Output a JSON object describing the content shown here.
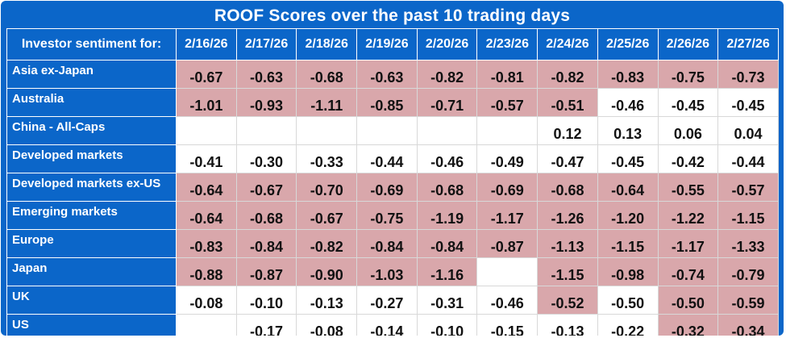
{
  "chart_data": {
    "type": "table",
    "title": "ROOF Scores over the past 10 trading days",
    "corner_label": "Investor sentiment for:",
    "columns": [
      "2/16/26",
      "2/17/26",
      "2/18/26",
      "2/19/26",
      "2/20/26",
      "2/23/26",
      "2/24/26",
      "2/25/26",
      "2/26/26",
      "2/27/26"
    ],
    "rows": [
      {
        "label": "Asia ex-Japan",
        "values": [
          -0.67,
          -0.63,
          -0.68,
          -0.63,
          -0.82,
          -0.81,
          -0.82,
          -0.83,
          -0.75,
          -0.73
        ]
      },
      {
        "label": "Australia",
        "values": [
          -1.01,
          -0.93,
          -1.11,
          -0.85,
          -0.71,
          -0.57,
          -0.51,
          -0.46,
          -0.45,
          -0.45
        ]
      },
      {
        "label": "China - All-Caps",
        "values": [
          null,
          null,
          null,
          null,
          null,
          null,
          0.12,
          0.13,
          0.06,
          0.04
        ]
      },
      {
        "label": "Developed markets",
        "values": [
          -0.41,
          -0.3,
          -0.33,
          -0.44,
          -0.46,
          -0.49,
          -0.47,
          -0.45,
          -0.42,
          -0.44
        ]
      },
      {
        "label": "Developed markets ex-US",
        "values": [
          -0.64,
          -0.67,
          -0.7,
          -0.69,
          -0.68,
          -0.69,
          -0.68,
          -0.64,
          -0.55,
          -0.57
        ]
      },
      {
        "label": "Emerging markets",
        "values": [
          -0.64,
          -0.68,
          -0.67,
          -0.75,
          -1.19,
          -1.17,
          -1.26,
          -1.2,
          -1.22,
          -1.15
        ]
      },
      {
        "label": "Europe",
        "values": [
          -0.83,
          -0.84,
          -0.82,
          -0.84,
          -0.84,
          -0.87,
          -1.13,
          -1.15,
          -1.17,
          -1.33
        ]
      },
      {
        "label": "Japan",
        "values": [
          -0.88,
          -0.87,
          -0.9,
          -1.03,
          -1.16,
          null,
          -1.15,
          -0.98,
          -0.74,
          -0.79
        ]
      },
      {
        "label": "UK",
        "values": [
          -0.08,
          -0.1,
          -0.13,
          -0.27,
          -0.31,
          -0.46,
          -0.52,
          -0.5,
          -0.5,
          -0.59
        ]
      },
      {
        "label": "US",
        "values": [
          null,
          -0.17,
          -0.08,
          -0.14,
          -0.1,
          -0.15,
          -0.13,
          -0.22,
          -0.32,
          -0.34
        ]
      }
    ],
    "highlighted": [
      [
        true,
        true,
        true,
        true,
        true,
        true,
        true,
        true,
        true,
        true
      ],
      [
        true,
        true,
        true,
        true,
        true,
        true,
        true,
        false,
        false,
        false
      ],
      [
        false,
        false,
        false,
        false,
        false,
        false,
        false,
        false,
        false,
        false
      ],
      [
        false,
        false,
        false,
        false,
        false,
        false,
        false,
        false,
        false,
        false
      ],
      [
        true,
        true,
        true,
        true,
        true,
        true,
        true,
        true,
        true,
        true
      ],
      [
        true,
        true,
        true,
        true,
        true,
        true,
        true,
        true,
        true,
        true
      ],
      [
        true,
        true,
        true,
        true,
        true,
        true,
        true,
        true,
        true,
        true
      ],
      [
        true,
        true,
        true,
        true,
        true,
        false,
        true,
        true,
        true,
        true
      ],
      [
        false,
        false,
        false,
        false,
        false,
        false,
        true,
        false,
        true,
        true
      ],
      [
        false,
        false,
        false,
        false,
        false,
        false,
        false,
        false,
        true,
        true
      ]
    ]
  },
  "colors": {
    "header_bg": "#0b66c9",
    "highlight": "#d9a7ab",
    "plain": "#ffffff"
  }
}
